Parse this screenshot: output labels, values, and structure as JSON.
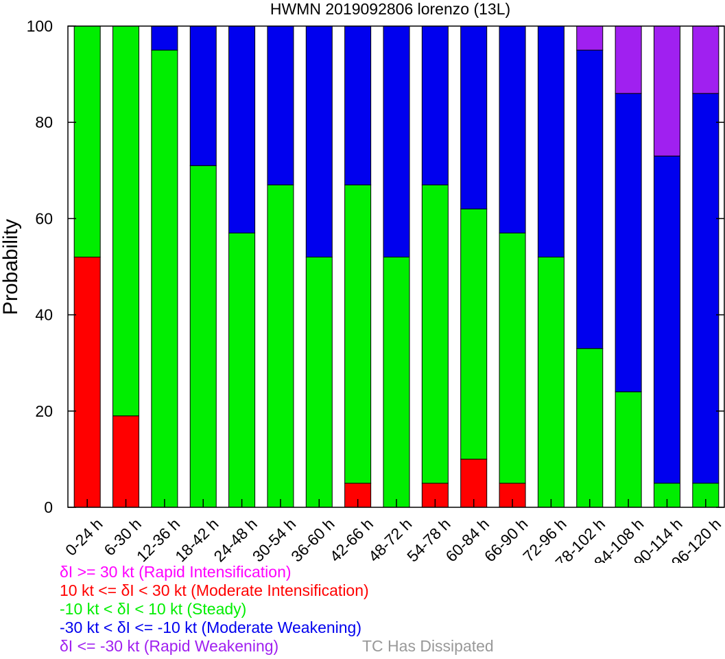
{
  "chart_data": {
    "type": "bar",
    "stacked": true,
    "title": "HWMN 2019092806 lorenzo (13L)",
    "ylabel": "Probability",
    "xlabel": "",
    "ylim": [
      0,
      100
    ],
    "yticks": [
      "0",
      "20",
      "40",
      "60",
      "80",
      "100"
    ],
    "categories": [
      "0-24 h",
      "6-30 h",
      "12-36 h",
      "18-42 h",
      "24-48 h",
      "30-54 h",
      "36-60 h",
      "42-66 h",
      "48-72 h",
      "54-78 h",
      "60-84 h",
      "66-90 h",
      "72-96 h",
      "78-102 h",
      "84-108 h",
      "90-114 h",
      "96-120 h"
    ],
    "series": [
      {
        "key": "ri",
        "color": "#ff00ff",
        "values": [
          0,
          0,
          0,
          0,
          0,
          0,
          0,
          0,
          0,
          0,
          0,
          0,
          0,
          0,
          0,
          0,
          0
        ]
      },
      {
        "key": "mi",
        "color": "#ff0000",
        "values": [
          52,
          19,
          0,
          0,
          0,
          0,
          0,
          5,
          0,
          5,
          10,
          5,
          0,
          0,
          0,
          0,
          0
        ]
      },
      {
        "key": "steady",
        "color": "#00ee00",
        "values": [
          48,
          81,
          95,
          71,
          57,
          67,
          52,
          62,
          52,
          62,
          52,
          52,
          52,
          33,
          24,
          5,
          5
        ]
      },
      {
        "key": "mw",
        "color": "#0000ee",
        "values": [
          0,
          0,
          5,
          29,
          43,
          33,
          48,
          33,
          48,
          33,
          38,
          43,
          48,
          62,
          62,
          68,
          81
        ]
      },
      {
        "key": "rw",
        "color": "#a020f0",
        "values": [
          0,
          0,
          0,
          0,
          0,
          0,
          0,
          0,
          0,
          0,
          0,
          0,
          0,
          5,
          14,
          27,
          14
        ]
      }
    ],
    "stack_order": [
      "mi",
      "steady",
      "mw",
      "rw"
    ]
  },
  "legend": [
    {
      "text": "δI >= 30 kt (Rapid Intensification)",
      "color": "#ff00ff"
    },
    {
      "text": "10 kt <= δI < 30 kt (Moderate Intensification)",
      "color": "#ff0000"
    },
    {
      "text": "-10 kt < δI < 10 kt (Steady)",
      "color": "#00ee00"
    },
    {
      "text": "-30 kt < δI <= -10 kt (Moderate Weakening)",
      "color": "#0000ee"
    },
    {
      "text": "δI <= -30 kt (Rapid Weakening)",
      "color": "#a020f0"
    }
  ],
  "dissipated_label": {
    "text": "TC Has Dissipated",
    "color": "#999999"
  }
}
